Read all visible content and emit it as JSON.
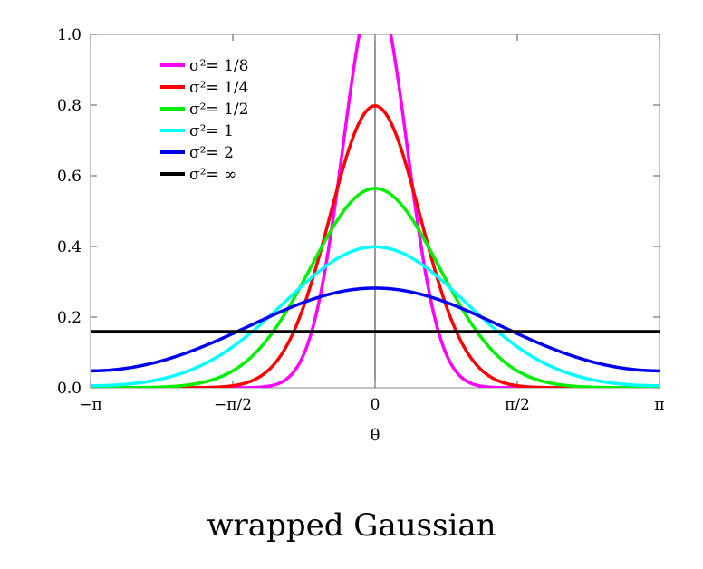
{
  "caption": "wrapped Gaussian",
  "chart_data": {
    "type": "line",
    "title": "",
    "xlabel": "θ",
    "ylabel": "",
    "xlim": [
      -3.14159265,
      3.14159265
    ],
    "ylim": [
      0.0,
      1.0
    ],
    "x_ticks": [
      {
        "value": -3.14159265,
        "label": "−π"
      },
      {
        "value": -1.5707963,
        "label": "−π/2"
      },
      {
        "value": 0,
        "label": "0"
      },
      {
        "value": 1.5707963,
        "label": "π/2"
      },
      {
        "value": 3.14159265,
        "label": "π"
      }
    ],
    "y_ticks": [
      {
        "value": 0.0,
        "label": "0.0"
      },
      {
        "value": 0.2,
        "label": "0.2"
      },
      {
        "value": 0.4,
        "label": "0.4"
      },
      {
        "value": 0.6,
        "label": "0.6"
      },
      {
        "value": 0.8,
        "label": "0.8"
      },
      {
        "value": 1.0,
        "label": "1.0"
      }
    ],
    "grid": false,
    "legend_position": "top-left",
    "series": [
      {
        "name": "σ²= 1/8",
        "variance": 0.125,
        "color": "#ff00ff",
        "x": [
          -3.1416,
          -2.3562,
          -1.5708,
          -1.0472,
          -0.7854,
          -0.5236,
          -0.2618,
          0,
          0.2618,
          0.5236,
          0.7854,
          1.0472,
          1.5708,
          2.3562,
          3.1416
        ],
        "y": [
          0.0,
          0.0,
          0.0,
          0.014,
          0.095,
          0.377,
          0.859,
          1.128,
          0.859,
          0.377,
          0.095,
          0.014,
          0.0,
          0.0,
          0.0
        ]
      },
      {
        "name": "σ²= 1/4",
        "variance": 0.25,
        "color": "#ff0000",
        "x": [
          -3.1416,
          -2.3562,
          -1.5708,
          -1.0472,
          -0.7854,
          -0.5236,
          -0.2618,
          0,
          0.2618,
          0.5236,
          0.7854,
          1.0472,
          1.5708,
          2.3562,
          3.1416
        ],
        "y": [
          0.0,
          0.0,
          0.007,
          0.089,
          0.232,
          0.459,
          0.697,
          0.798,
          0.697,
          0.459,
          0.232,
          0.089,
          0.007,
          0.0,
          0.0
        ]
      },
      {
        "name": "σ²= 1/2",
        "variance": 0.5,
        "color": "#00ee00",
        "x": [
          -3.1416,
          -2.3562,
          -1.5708,
          -1.0472,
          -0.7854,
          -0.5236,
          -0.2618,
          0,
          0.2618,
          0.5236,
          0.7854,
          1.0472,
          1.5708,
          2.3562,
          3.1416
        ],
        "y": [
          0.0,
          0.002,
          0.048,
          0.188,
          0.303,
          0.429,
          0.528,
          0.564,
          0.528,
          0.429,
          0.303,
          0.188,
          0.048,
          0.002,
          0.0
        ]
      },
      {
        "name": "σ²= 1",
        "variance": 1.0,
        "color": "#00ffff",
        "x": [
          -3.1416,
          -2.3562,
          -1.5708,
          -1.0472,
          -0.7854,
          -0.5236,
          -0.2618,
          0,
          0.2618,
          0.5236,
          0.7854,
          1.0472,
          1.5708,
          2.3562,
          3.1416
        ],
        "y": [
          0.009,
          0.027,
          0.117,
          0.23,
          0.295,
          0.348,
          0.385,
          0.399,
          0.385,
          0.348,
          0.295,
          0.23,
          0.117,
          0.027,
          0.009
        ]
      },
      {
        "name": "σ²= 2",
        "variance": 2.0,
        "color": "#0000ee",
        "x": [
          -3.1416,
          -2.3562,
          -1.5708,
          -1.0472,
          -0.7854,
          -0.5236,
          -0.2618,
          0,
          0.2618,
          0.5236,
          0.7854,
          1.0472,
          1.5708,
          2.3562,
          3.1416
        ],
        "y": [
          0.047,
          0.071,
          0.153,
          0.21,
          0.237,
          0.258,
          0.273,
          0.278,
          0.273,
          0.258,
          0.237,
          0.21,
          0.153,
          0.071,
          0.047
        ]
      },
      {
        "name": "σ²= ∞",
        "variance": "infinity",
        "color": "#000000",
        "x": [
          -3.1416,
          3.1416
        ],
        "y": [
          0.159,
          0.159
        ]
      }
    ]
  }
}
